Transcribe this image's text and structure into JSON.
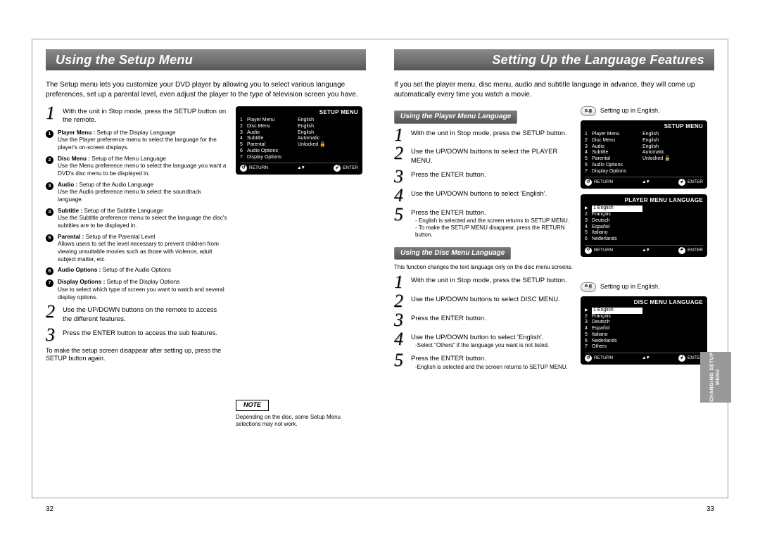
{
  "left": {
    "title": "Using the Setup Menu",
    "intro": "The Setup menu lets you customize your DVD player by allowing you to select various language preferences, set up a parental level, even adjust the player to the type of television screen you have.",
    "step1": "With the unit in Stop mode, press the SETUP button on the remote.",
    "bullets": [
      {
        "head": "Player Menu :",
        "sub": "Setup of the Display Language",
        "body": "Use the Player preference menu to select the language for the player's on-screen displays."
      },
      {
        "head": "Disc Menu :",
        "sub": "Setup of the Menu Language",
        "body": "Use the Menu preference menu to select the language you want a DVD's disc menu to be displayed in."
      },
      {
        "head": "Audio :",
        "sub": "Setup of the Audio Language",
        "body": "Use the Audio preference menu to select the soundtrack language."
      },
      {
        "head": "Subtitle :",
        "sub": "Setup of the Subtitle Language",
        "body": "Use the Subtitle preference menu to select the language the disc's subtitles are to be displayed in."
      },
      {
        "head": "Parental :",
        "sub": "Setup of the Parental Level",
        "body": "Allows users to set the level necessary to prevent children from viewing unsuitable movies such as those with violence, adult subject matter, etc."
      },
      {
        "head": "Audio Options :",
        "sub": "Setup of the Audio Options",
        "body": ""
      },
      {
        "head": "Display Options :",
        "sub": "Setup of the Display Options",
        "body": "Use to select which type of screen you want to watch and several display options."
      }
    ],
    "step2": "Use the UP/DOWN buttons on the remote to access the different features.",
    "step3": "Press the ENTER button to access the sub features.",
    "foot": "To make the setup screen disappear after setting up, press the SETUP button again.",
    "noteLabel": "NOTE",
    "note": "Depending on the disc, some Setup Menu selections may not work.",
    "pagenum": "32",
    "menubox": {
      "title": "SETUP MENU",
      "rows": [
        [
          "1",
          "Player Menu",
          "English"
        ],
        [
          "2",
          "Disc Menu",
          "English"
        ],
        [
          "3",
          "Audio",
          "English"
        ],
        [
          "4",
          "Subtitle",
          "Automatic"
        ],
        [
          "5",
          "Parental",
          "Unlocked  🔓"
        ],
        [
          "6",
          "Audio Options",
          ""
        ],
        [
          "7",
          "Display Options",
          ""
        ]
      ],
      "return": "RETURN",
      "enter": "ENTER"
    }
  },
  "right": {
    "title": "Setting Up the Language Features",
    "intro": "If you set the player menu, disc menu, audio and subtitle language in advance, they will come up automatically every time you watch a movie.",
    "secA": "Using the Player Menu Language",
    "a": {
      "s1": "With the unit in Stop mode, press the SETUP button.",
      "s2": "Use the UP/DOWN buttons to select the PLAYER MENU.",
      "s3": "Press the ENTER button.",
      "s4": "Use the UP/DOWN buttons to select 'English'.",
      "s5": "Press the ENTER button.",
      "s5n1": "- English is selected and the screen returns to SETUP MENU.",
      "s5n2": "- To make the SETUP MENU disappear, press the RETURN button."
    },
    "secB": "Using the Disc Menu Language",
    "bIntro": "This function changes the text language only on the disc menu screens.",
    "b": {
      "s1": "With the unit in Stop mode, press the SETUP button.",
      "s2": "Use the UP/DOWN buttons to select DISC MENU.",
      "s3": "Press the ENTER button.",
      "s4": "Use the UP/DOWN button to select 'English'.",
      "s4n": "-Select \"Others\" if the language you want is not listed.",
      "s5": "Press the ENTER button.",
      "s5n": "-English is selected and the screen returns to SETUP MENU."
    },
    "eg": "Setting up in English.",
    "egLabel": "e.g",
    "box1": {
      "title": "SETUP MENU",
      "rows": [
        [
          "1",
          "Player Menu",
          "English"
        ],
        [
          "2",
          "Disc Menu",
          "English"
        ],
        [
          "3",
          "Audio",
          "English"
        ],
        [
          "4",
          "Subtitle",
          "Automatic"
        ],
        [
          "5",
          "Parental",
          "Unlocked  🔓"
        ],
        [
          "6",
          "Audio Options",
          ""
        ],
        [
          "7",
          "Display Options",
          ""
        ]
      ]
    },
    "box2": {
      "title": "PLAYER MENU LANGUAGE",
      "rows": [
        [
          "1",
          "English"
        ],
        [
          "2",
          "Français"
        ],
        [
          "3",
          "Deutsch"
        ],
        [
          "4",
          "Español"
        ],
        [
          "5",
          "Italiano"
        ],
        [
          "6",
          "Nederlands"
        ]
      ]
    },
    "box3": {
      "title": "DISC MENU LANGUAGE",
      "rows": [
        [
          "1",
          "English"
        ],
        [
          "2",
          "Français"
        ],
        [
          "3",
          "Deutsch"
        ],
        [
          "4",
          "Español"
        ],
        [
          "5",
          "Italiano"
        ],
        [
          "6",
          "Nederlands"
        ],
        [
          "7",
          "Others"
        ]
      ]
    },
    "return": "RETURN",
    "enter": "ENTER",
    "pagenum": "33",
    "sidetab": "CHANGING\nSETUP MENU"
  }
}
